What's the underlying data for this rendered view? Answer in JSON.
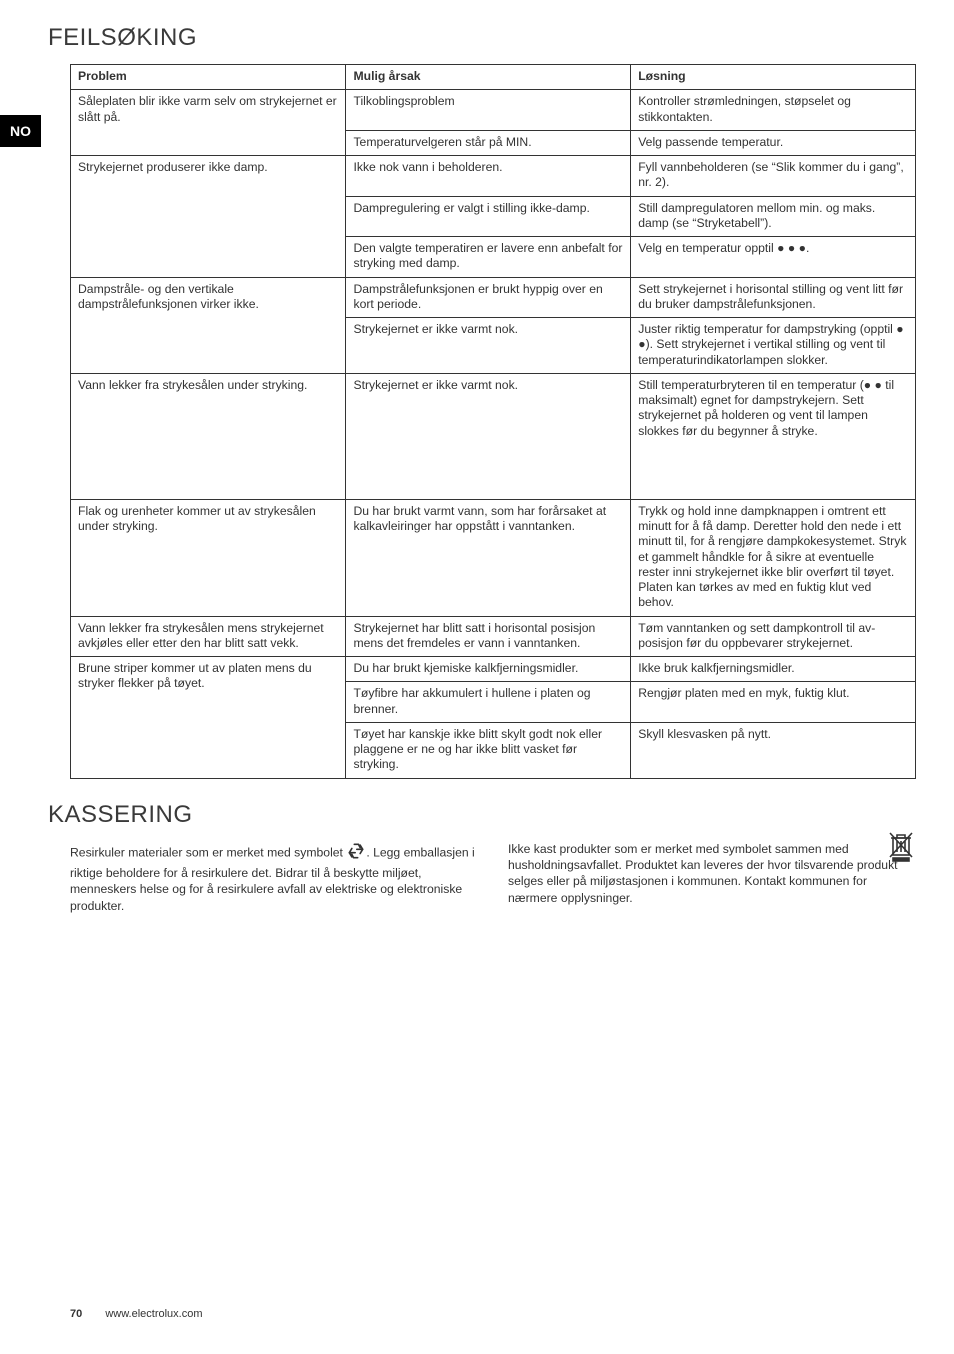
{
  "lang_tab": "NO",
  "troubleshooting_title": "FEILSØKING",
  "disposal_title": "KASSERING",
  "table": {
    "headers": {
      "problem": "Problem",
      "cause": "Mulig årsak",
      "solution": "Løsning"
    },
    "rows": [
      {
        "pspan": 2,
        "problem": "Såleplaten blir ikke varm selv om strykejernet er slått på.",
        "cause": "Tilkoblingsproblem",
        "solution": "Kontroller strømledningen, støpselet og stikkontakten."
      },
      {
        "cause": "Temperaturvelgeren står på MIN.",
        "solution": "Velg passende temperatur."
      },
      {
        "pspan": 3,
        "problem": "Strykejernet produserer ikke damp.",
        "cause": "Ikke nok vann i beholderen.",
        "solution": "Fyll vannbeholderen (se “Slik kommer du i gang”, nr. 2)."
      },
      {
        "cause": "Dampregulering er valgt i stilling ikke-damp.",
        "solution": "Still dampregulatoren mellom min. og maks. damp (se “Stryketabell”)."
      },
      {
        "cause": "Den valgte temperatiren er lavere enn anbefalt for stryking med damp.",
        "solution": "Velg en temperatur opptil ● ● ●."
      },
      {
        "pspan": 2,
        "problem": "Dampstråle- og den vertikale dampstrålefunksjonen virker ikke.",
        "cause": "Dampstrålefunksjonen er brukt hyppig over en kort periode.",
        "solution": "Sett strykejernet i horisontal stilling og vent litt før du bruker dampstrålefunksjonen."
      },
      {
        "cause": "Strykejernet er ikke varmt nok.",
        "solution": "Juster riktig temperatur for dampstryking (opptil ● ●). Sett strykejernet i vertikal stilling og vent til temperaturindikatorlampen slokker."
      },
      {
        "pspan": 1,
        "problem": "Vann lekker fra strykesålen under stryking.",
        "cause": "Strykejernet er ikke varmt nok.",
        "solution": "Still temperaturbryteren til en temperatur (● ● til maksimalt) egnet for dampstrykejern. Sett strykejernet på holderen og vent til lampen slokkes før du begynner å stryke.",
        "tall": true
      },
      {
        "pspan": 1,
        "problem": "Flak og urenheter kommer ut av strykesålen under stryking.",
        "cause": "Du har brukt varmt vann, som har forårsaket at kalkavleiringer har oppstått i vanntanken.",
        "solution": "Trykk og hold inne dampknappen i omtrent ett minutt for å få damp. Deretter hold den nede i ett minutt til, for å rengjøre dampkokesystemet. Stryk et gammelt håndkle for å sikre at eventuelle rester inni strykejernet ikke blir overført til tøyet. Platen kan tørkes av med en fuktig klut ved behov."
      },
      {
        "pspan": 1,
        "problem": "Vann lekker fra strykesålen mens strykejernet avkjøles eller etter den har blitt satt vekk.",
        "cause": "Strykejernet har blitt satt i horisontal posisjon mens det fremdeles er vann i vanntanken.",
        "solution": "Tøm vanntanken og sett dampkontroll til av-posisjon før du oppbevarer strykejernet."
      },
      {
        "pspan": 3,
        "problem": "Brune striper kommer ut av platen mens du stryker flekker på tøyet.",
        "cause": "Du har brukt kjemiske kalkfjerningsmidler.",
        "solution": "Ikke bruk kalkfjerningsmidler."
      },
      {
        "cause": "Tøyfibre har akkumulert i hullene i platen og brenner.",
        "solution": "Rengjør platen med en myk, fuktig klut."
      },
      {
        "cause": "Tøyet har kanskje ikke blitt skylt godt nok eller plaggene er ne og har ikke blitt vasket før stryking.",
        "solution": "Skyll klesvasken på nytt."
      }
    ]
  },
  "disposal": {
    "left_a": "Resirkuler materialer som er merket med symbolet ",
    "left_b": ". Legg emballasjen i riktige beholdere for å resirkulere det. Bidrar til å beskytte miljøet, menneskers helse og for å resirkulere avfall av elektriske og elektroniske produkter.",
    "right_a": "Ikke kast produkter som er merket med symbolet ",
    "right_b": " sammen med husholdningsavfallet. Produktet kan leveres der hvor tilsvarende produkt selges eller på miljøstasjonen i kommunen. Kontakt kommunen for nærmere opplysninger."
  },
  "footer": {
    "page": "70",
    "url": "www.electrolux.com"
  }
}
